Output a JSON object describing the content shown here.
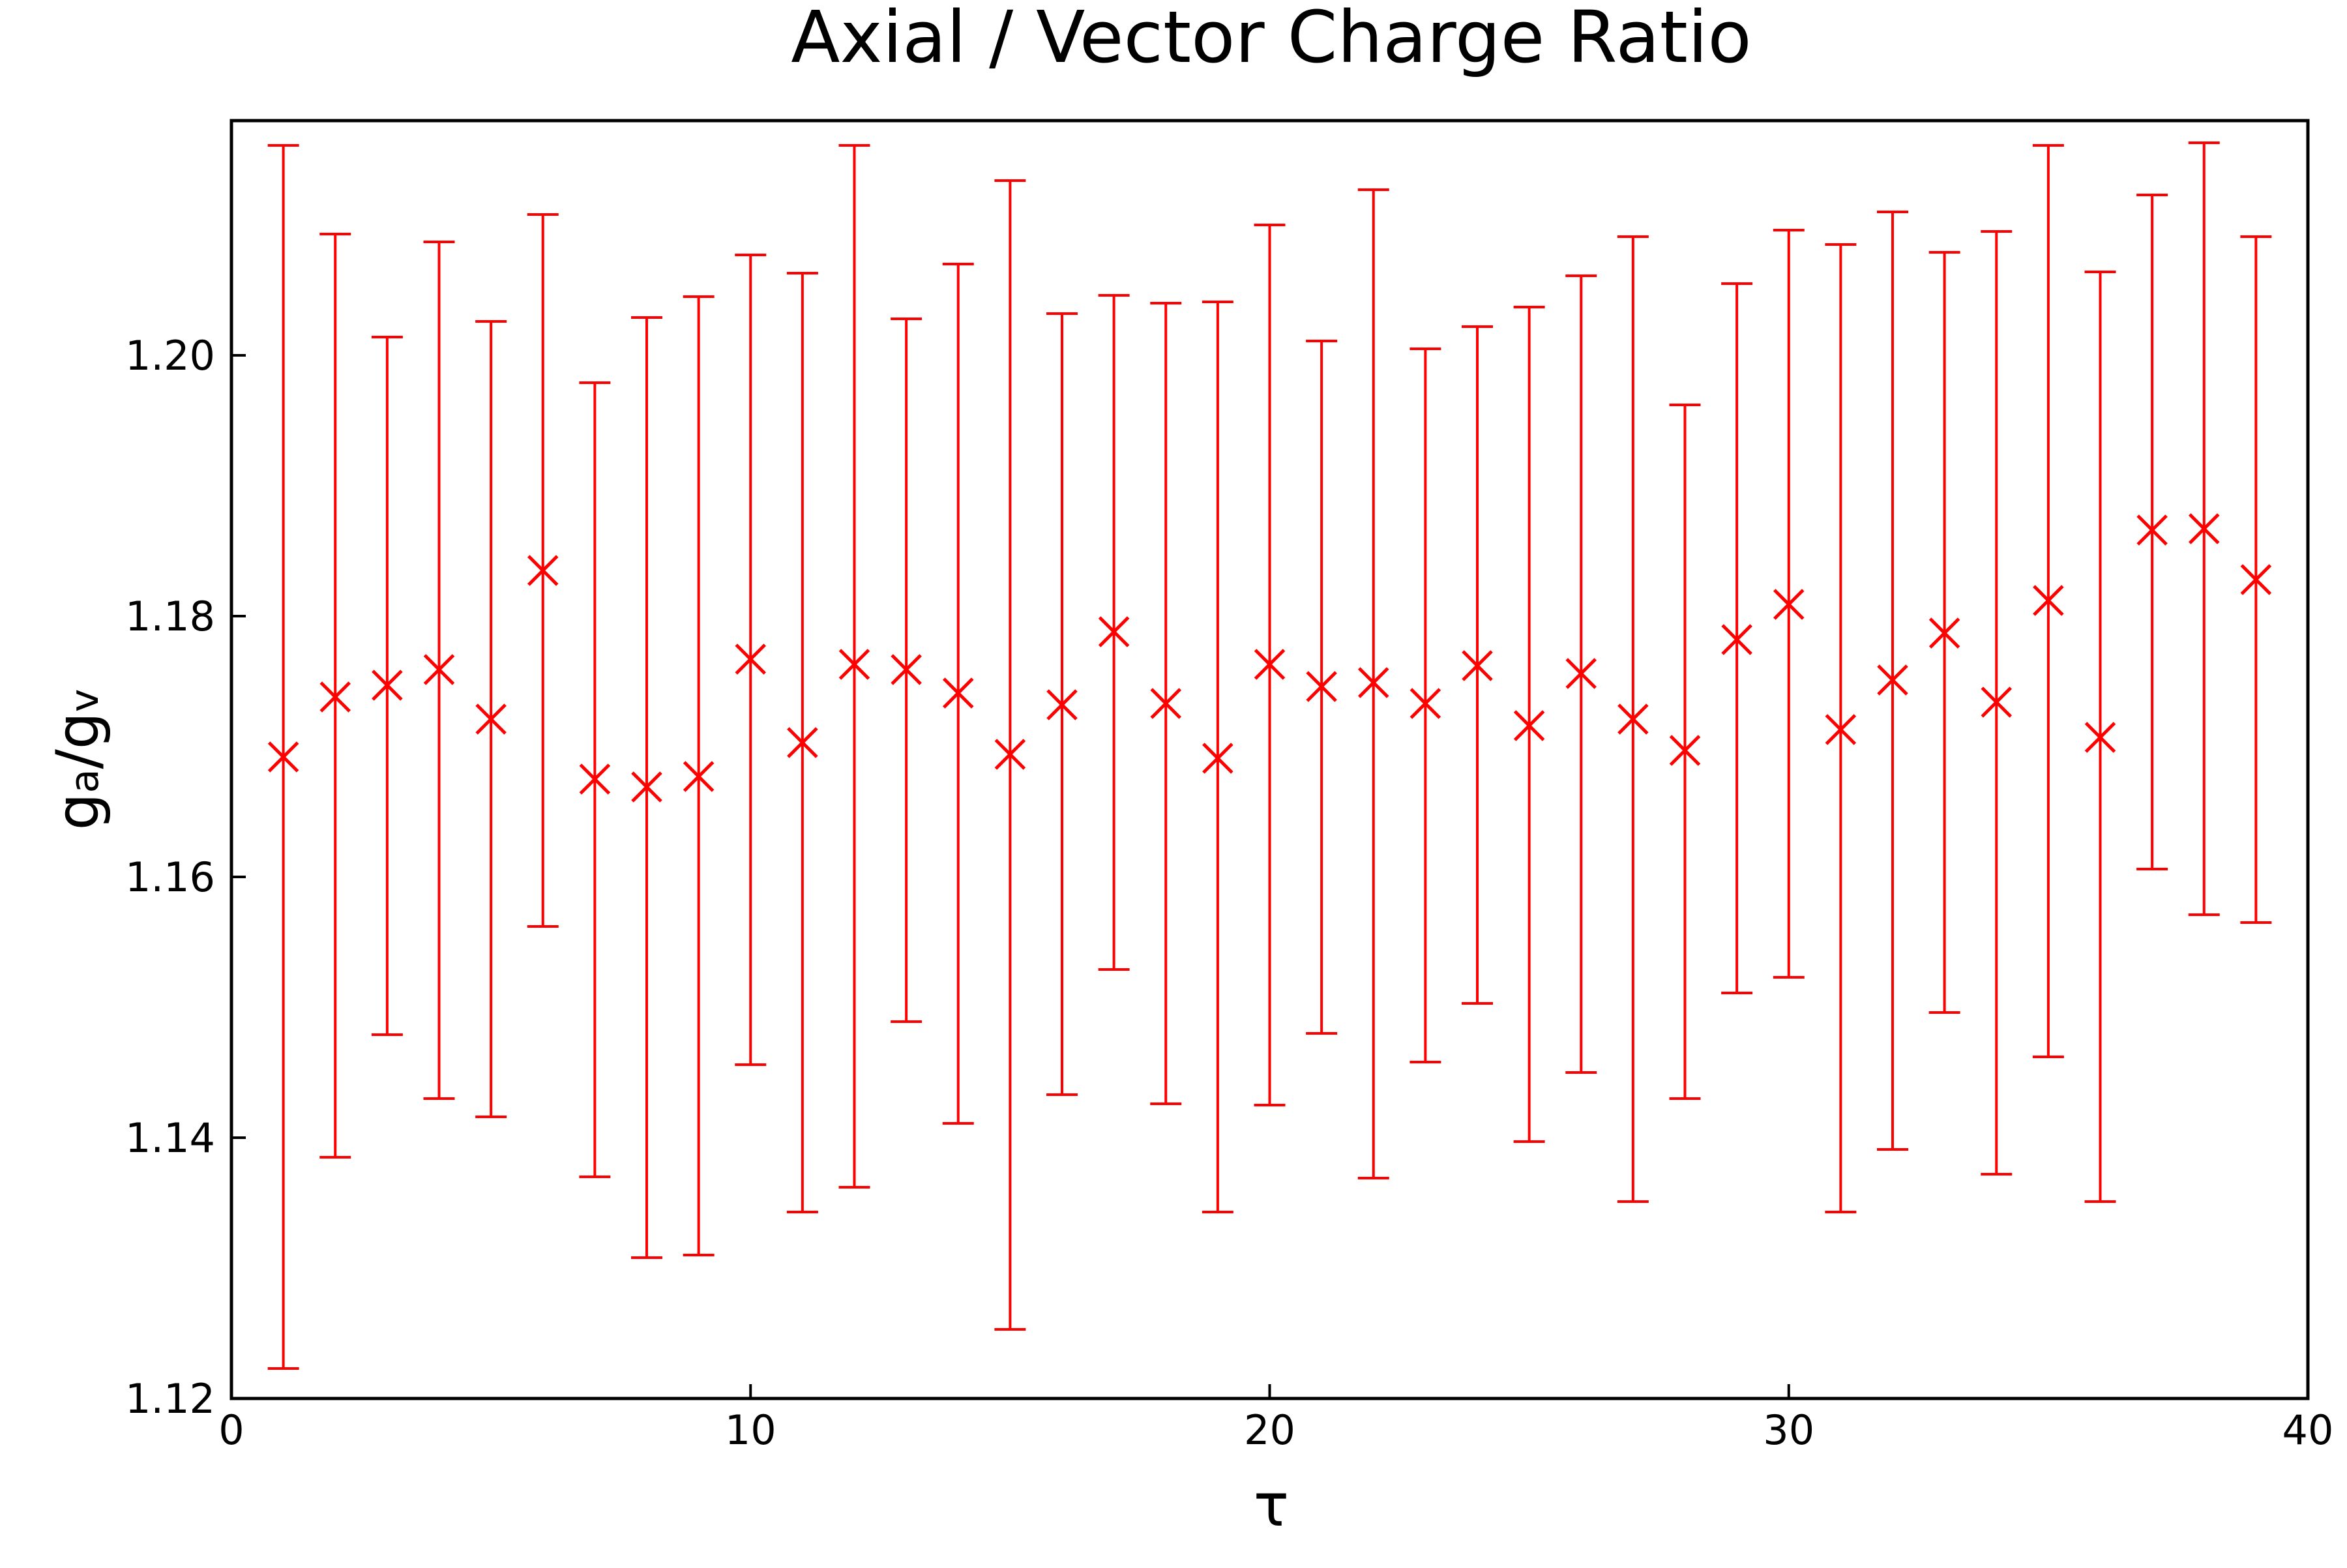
{
  "chart_data": {
    "type": "scatter",
    "title": "Axial / Vector Charge Ratio",
    "xlabel": "τ",
    "ylabel": {
      "main_1": "g",
      "sub_1": "a",
      "slash": "/",
      "main_2": "g",
      "sub_2": "v"
    },
    "xlim": [
      0,
      40
    ],
    "ylim": [
      1.12,
      1.218
    ],
    "x_ticks": [
      0,
      10,
      20,
      30,
      40
    ],
    "x_tick_labels": [
      "0",
      "10",
      "20",
      "30",
      "40"
    ],
    "y_ticks": [
      1.12,
      1.14,
      1.16,
      1.18,
      1.2
    ],
    "y_tick_labels": [
      "1.12",
      "1.14",
      "1.16",
      "1.18",
      "1.20"
    ],
    "grid": false,
    "legend": "none",
    "marker": "x",
    "color": "#ff0000",
    "series": [
      {
        "x": [
          1,
          2,
          3,
          4,
          5,
          6,
          7,
          8,
          9,
          10,
          11,
          12,
          13,
          14,
          15,
          16,
          17,
          18,
          19,
          20,
          21,
          22,
          23,
          24,
          25,
          26,
          27,
          28,
          29,
          30,
          31,
          32,
          33,
          34,
          35,
          36,
          37,
          38,
          39
        ],
        "y": [
          1.1692,
          1.1738,
          1.1747,
          1.1759,
          1.1721,
          1.1835,
          1.1675,
          1.1669,
          1.1677,
          1.1767,
          1.1703,
          1.1763,
          1.1759,
          1.1741,
          1.1694,
          1.1732,
          1.1788,
          1.1733,
          1.1691,
          1.1763,
          1.1746,
          1.1749,
          1.1733,
          1.1762,
          1.1716,
          1.1756,
          1.1721,
          1.1697,
          1.1782,
          1.1809,
          1.1713,
          1.1751,
          1.1787,
          1.1734,
          1.1812,
          1.1707,
          1.1866,
          1.1867,
          1.1828
        ],
        "y_upper": [
          1.2161,
          1.2093,
          1.2014,
          1.2087,
          1.2026,
          1.2108,
          1.1979,
          1.2029,
          1.2045,
          1.2077,
          1.2063,
          1.2161,
          1.2028,
          1.207,
          1.2134,
          1.2032,
          1.2046,
          1.204,
          1.2041,
          1.21,
          1.2011,
          1.2127,
          1.2005,
          1.2022,
          1.2037,
          1.2061,
          1.2091,
          1.1962,
          1.2055,
          1.2096,
          1.2085,
          1.211,
          1.2079,
          1.2095,
          1.2161,
          1.2064,
          1.2123,
          1.2163,
          1.2091
        ],
        "y_lower": [
          1.1223,
          1.1385,
          1.1479,
          1.143,
          1.1416,
          1.1562,
          1.137,
          1.1308,
          1.131,
          1.1456,
          1.1343,
          1.1362,
          1.1489,
          1.1411,
          1.1253,
          1.1433,
          1.1529,
          1.1426,
          1.1343,
          1.1425,
          1.148,
          1.1369,
          1.1458,
          1.1503,
          1.1397,
          1.145,
          1.1351,
          1.143,
          1.1511,
          1.1523,
          1.1343,
          1.1391,
          1.1496,
          1.1372,
          1.1462,
          1.1351,
          1.1606,
          1.1571,
          1.1565
        ]
      }
    ]
  }
}
